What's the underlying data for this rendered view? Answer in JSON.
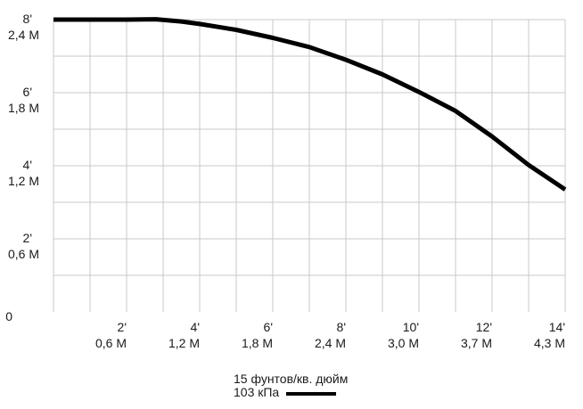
{
  "chart_data": {
    "type": "line",
    "title": "",
    "xlabel": "",
    "ylabel": "",
    "xlim": [
      0,
      14
    ],
    "ylim": [
      0,
      8
    ],
    "grid": true,
    "legend_position": "bottom-center",
    "x_ticks": [
      {
        "value": 2,
        "ft": "2'",
        "m": "0,6 M"
      },
      {
        "value": 4,
        "ft": "4'",
        "m": "1,2 M"
      },
      {
        "value": 6,
        "ft": "6'",
        "m": "1,8 M"
      },
      {
        "value": 8,
        "ft": "8'",
        "m": "2,4 M"
      },
      {
        "value": 10,
        "ft": "10'",
        "m": "3,0 M"
      },
      {
        "value": 12,
        "ft": "12'",
        "m": "3,7 M"
      },
      {
        "value": 14,
        "ft": "14'",
        "m": "4,3 M"
      }
    ],
    "y_ticks": [
      {
        "value": 0,
        "ft": "0",
        "m": ""
      },
      {
        "value": 2,
        "ft": "2'",
        "m": "0,6 M"
      },
      {
        "value": 4,
        "ft": "4'",
        "m": "1,2 M"
      },
      {
        "value": 6,
        "ft": "6'",
        "m": "1,8 M"
      },
      {
        "value": 8,
        "ft": "8'",
        "m": "2,4 M"
      }
    ],
    "series": [
      {
        "name_line1": "15 фунтов/кв. дюйм",
        "name_line2": "103 кПа",
        "color": "#000000",
        "x": [
          0,
          1,
          2,
          2.8,
          3.5,
          4,
          5,
          6,
          7,
          8,
          9,
          10,
          11,
          12,
          13,
          14
        ],
        "y": [
          8,
          8,
          8,
          8.01,
          7.95,
          7.88,
          7.72,
          7.5,
          7.25,
          6.9,
          6.5,
          6.02,
          5.5,
          4.8,
          4.02,
          3.35
        ]
      }
    ]
  },
  "legend": {
    "line1": "15 фунтов/кв. дюйм",
    "line2": "103 кПа"
  }
}
